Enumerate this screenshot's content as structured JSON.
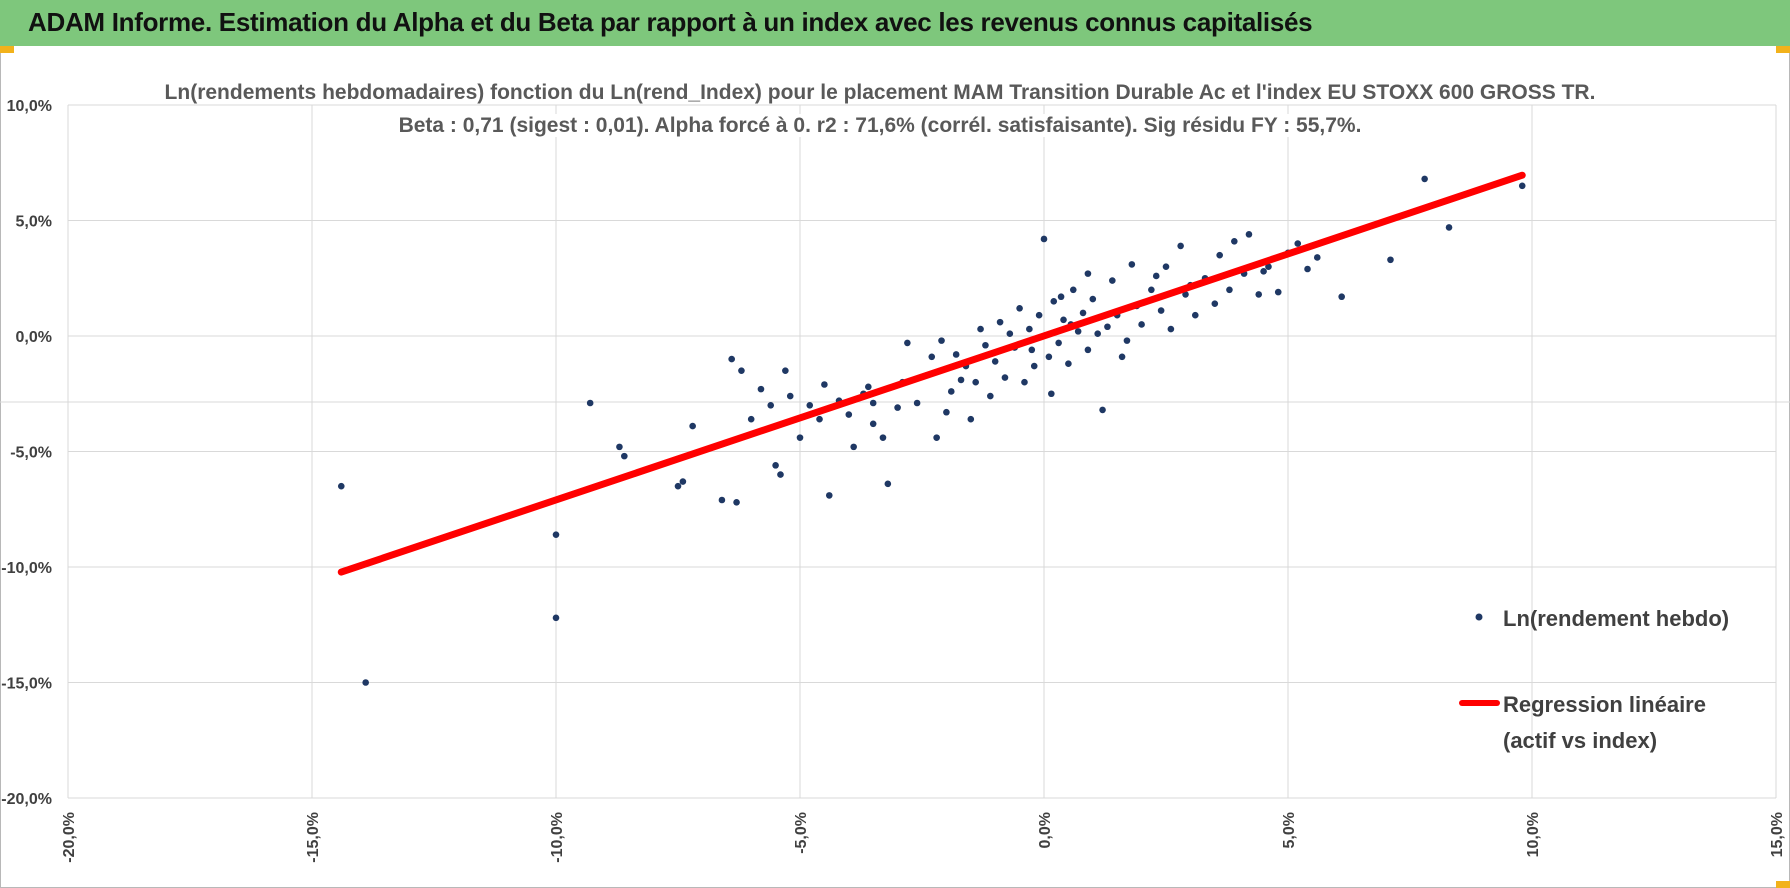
{
  "banner": {
    "title": "ADAM Informe. Estimation du Alpha et du Beta par rapport à un index avec les revenus connus capitalisés"
  },
  "colors": {
    "banner": "#7ec77c",
    "points": "#1f3864",
    "regression": "#ff0000",
    "grid": "#d9d9d9",
    "corner_marker": "#f2b21b"
  },
  "chart_data": {
    "type": "scatter",
    "title": "Ln(rendements hebdomadaires) fonction du Ln(rend_Index) pour le placement MAM Transition Durable Ac et l'index EU STOXX 600 GROSS TR.",
    "subtitle": "Beta : 0,71 (sigest : 0,01). Alpha forcé à 0. r2 : 71,6% (corrél. satisfaisante). Sig résidu FY : 55,7%.",
    "xlabel": "",
    "ylabel": "",
    "xlim": [
      -20,
      15
    ],
    "ylim": [
      -20,
      10
    ],
    "x_ticks": [
      -20,
      -15,
      -10,
      -5,
      0,
      5,
      10,
      15
    ],
    "y_ticks": [
      10,
      5,
      0,
      -5,
      -10,
      -15,
      -20
    ],
    "x_tick_labels": [
      "-20,0%",
      "-15,0%",
      "-10,0%",
      "-5,0%",
      "0,0%",
      "5,0%",
      "10,0%",
      "15,0%"
    ],
    "y_tick_labels": [
      "10,0%",
      "5,0%",
      "0,0%",
      "-5,0%",
      "-10,0%",
      "-15,0%",
      "-20,0%"
    ],
    "grid": true,
    "legend_position": "right",
    "series": [
      {
        "name": "Ln(rendement hebdo)",
        "kind": "points",
        "points": [
          [
            -14.4,
            -6.5
          ],
          [
            -13.9,
            -15.0
          ],
          [
            -10.0,
            -8.6
          ],
          [
            -10.0,
            -12.2
          ],
          [
            -9.3,
            -2.9
          ],
          [
            -8.7,
            -4.8
          ],
          [
            -8.6,
            -5.2
          ],
          [
            -7.5,
            -6.5
          ],
          [
            -7.4,
            -6.3
          ],
          [
            -7.2,
            -3.9
          ],
          [
            -6.6,
            -7.1
          ],
          [
            -6.3,
            -7.2
          ],
          [
            -6.4,
            -1.0
          ],
          [
            -6.2,
            -1.5
          ],
          [
            -6.0,
            -3.6
          ],
          [
            -5.8,
            -2.3
          ],
          [
            -5.6,
            -3.0
          ],
          [
            -5.5,
            -5.6
          ],
          [
            -5.4,
            -6.0
          ],
          [
            -5.3,
            -1.5
          ],
          [
            -5.2,
            -2.6
          ],
          [
            -5.0,
            -4.4
          ],
          [
            -4.8,
            -3.0
          ],
          [
            -4.6,
            -3.6
          ],
          [
            -4.5,
            -2.1
          ],
          [
            -4.4,
            -6.9
          ],
          [
            -4.0,
            -3.4
          ],
          [
            -3.9,
            -4.8
          ],
          [
            -3.7,
            -2.5
          ],
          [
            -3.5,
            -3.8
          ],
          [
            -3.5,
            -2.9
          ],
          [
            -3.3,
            -4.4
          ],
          [
            -3.2,
            -6.4
          ],
          [
            -3.0,
            -3.1
          ],
          [
            -2.8,
            -0.3
          ],
          [
            -2.6,
            -2.9
          ],
          [
            -2.4,
            -1.7
          ],
          [
            -2.2,
            -4.4
          ],
          [
            -2.1,
            -0.2
          ],
          [
            -2.0,
            -3.3
          ],
          [
            -1.9,
            -2.4
          ],
          [
            -1.8,
            -0.8
          ],
          [
            -1.6,
            -1.3
          ],
          [
            -1.5,
            -3.6
          ],
          [
            -1.4,
            -2.0
          ],
          [
            -1.2,
            -0.4
          ],
          [
            -1.1,
            -2.6
          ],
          [
            -1.0,
            -1.1
          ],
          [
            -0.9,
            0.6
          ],
          [
            -0.8,
            -1.8
          ],
          [
            -0.6,
            -0.5
          ],
          [
            -0.5,
            1.2
          ],
          [
            -0.4,
            -2.0
          ],
          [
            -0.3,
            0.3
          ],
          [
            -0.2,
            -1.3
          ],
          [
            -0.1,
            0.9
          ],
          [
            0.0,
            4.2
          ],
          [
            0.1,
            -0.9
          ],
          [
            0.2,
            1.5
          ],
          [
            0.3,
            -0.3
          ],
          [
            0.4,
            0.7
          ],
          [
            0.5,
            -1.2
          ],
          [
            0.6,
            2.0
          ],
          [
            0.7,
            0.2
          ],
          [
            0.8,
            1.0
          ],
          [
            0.9,
            -0.6
          ],
          [
            1.0,
            1.6
          ],
          [
            1.2,
            -3.2
          ],
          [
            1.3,
            0.4
          ],
          [
            1.4,
            2.4
          ],
          [
            1.5,
            0.9
          ],
          [
            1.7,
            -0.2
          ],
          [
            1.8,
            3.1
          ],
          [
            1.9,
            1.3
          ],
          [
            2.0,
            0.5
          ],
          [
            2.2,
            2.0
          ],
          [
            2.4,
            1.1
          ],
          [
            2.5,
            3.0
          ],
          [
            2.6,
            0.3
          ],
          [
            2.8,
            3.9
          ],
          [
            2.9,
            1.8
          ],
          [
            3.1,
            0.9
          ],
          [
            3.3,
            2.5
          ],
          [
            3.5,
            1.4
          ],
          [
            3.6,
            3.5
          ],
          [
            3.8,
            2.0
          ],
          [
            3.9,
            4.1
          ],
          [
            4.1,
            2.7
          ],
          [
            4.2,
            4.4
          ],
          [
            4.4,
            1.8
          ],
          [
            4.6,
            3.0
          ],
          [
            4.8,
            1.9
          ],
          [
            5.0,
            3.6
          ],
          [
            5.2,
            4.0
          ],
          [
            5.4,
            2.9
          ],
          [
            5.6,
            3.4
          ],
          [
            6.1,
            1.7
          ],
          [
            7.1,
            3.3
          ],
          [
            7.8,
            6.8
          ],
          [
            8.3,
            4.7
          ],
          [
            9.8,
            6.5
          ],
          [
            -2.3,
            -0.9
          ],
          [
            -1.7,
            -1.9
          ],
          [
            -0.7,
            0.1
          ],
          [
            0.35,
            1.7
          ],
          [
            1.1,
            0.1
          ],
          [
            -3.6,
            -2.2
          ],
          [
            -4.2,
            -2.8
          ],
          [
            -2.9,
            -2.0
          ],
          [
            0.9,
            2.7
          ],
          [
            2.3,
            2.6
          ],
          [
            1.6,
            -0.9
          ],
          [
            -1.3,
            0.3
          ],
          [
            0.15,
            -2.5
          ],
          [
            3.0,
            2.2
          ],
          [
            4.5,
            2.8
          ],
          [
            -0.25,
            -0.6
          ],
          [
            0.55,
            0.5
          ]
        ]
      },
      {
        "name": "Regression linéaire\n(actif vs index)",
        "kind": "line",
        "x": [
          -14.4,
          9.8
        ],
        "y": [
          -10.22,
          6.96
        ]
      }
    ]
  },
  "legend": [
    {
      "label_lines": [
        "Ln(rendement hebdo)"
      ]
    },
    {
      "label_lines": [
        "Regression linéaire",
        "(actif vs index)"
      ]
    }
  ]
}
